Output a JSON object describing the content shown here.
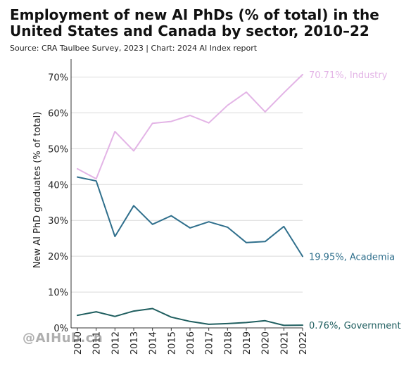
{
  "page": {
    "title": "Employment of new AI PhDs (% of total) in the United States and Canada by sector, 2010–22",
    "subtitle": "Source: CRA Taulbee Survey, 2023 | Chart: 2024 AI Index report",
    "watermark": "@AIHub.cn"
  },
  "chart_data": {
    "type": "line",
    "title": "Employment of new AI PhDs (% of total) in the United States and Canada by sector, 2010–22",
    "subtitle": "Source: CRA Taulbee Survey, 2023 | Chart: 2024 AI Index report",
    "xlabel": "",
    "ylabel": "New AI PhD graduates (% of total)",
    "x": [
      "2010",
      "2011",
      "2012",
      "2013",
      "2014",
      "2015",
      "2016",
      "2017",
      "2018",
      "2019",
      "2020",
      "2021",
      "2022"
    ],
    "ylim": [
      0,
      75
    ],
    "yticks": [
      0,
      10,
      20,
      30,
      40,
      50,
      60,
      70
    ],
    "ytick_labels": [
      "0%",
      "10%",
      "20%",
      "30%",
      "40%",
      "50%",
      "60%",
      "70%"
    ],
    "grid": "horizontal",
    "series": [
      {
        "name": "Industry",
        "color": "#e3b4e6",
        "end_label": "70.71%, Industry",
        "values": [
          44.4,
          41.6,
          54.8,
          49.4,
          57.1,
          57.6,
          59.3,
          57.2,
          62.1,
          65.8,
          60.3,
          65.6,
          70.71
        ]
      },
      {
        "name": "Academia",
        "color": "#2f6f8c",
        "end_label": "19.95%, Academia",
        "values": [
          42.1,
          41.0,
          25.5,
          34.1,
          28.9,
          31.3,
          27.9,
          29.6,
          28.1,
          23.8,
          24.1,
          28.3,
          19.95
        ]
      },
      {
        "name": "Government",
        "color": "#1f5e5f",
        "end_label": "0.76%, Government",
        "values": [
          3.5,
          4.5,
          3.2,
          4.7,
          5.4,
          3.0,
          1.8,
          1.0,
          1.2,
          1.5,
          2.0,
          0.7,
          0.76
        ]
      }
    ]
  }
}
